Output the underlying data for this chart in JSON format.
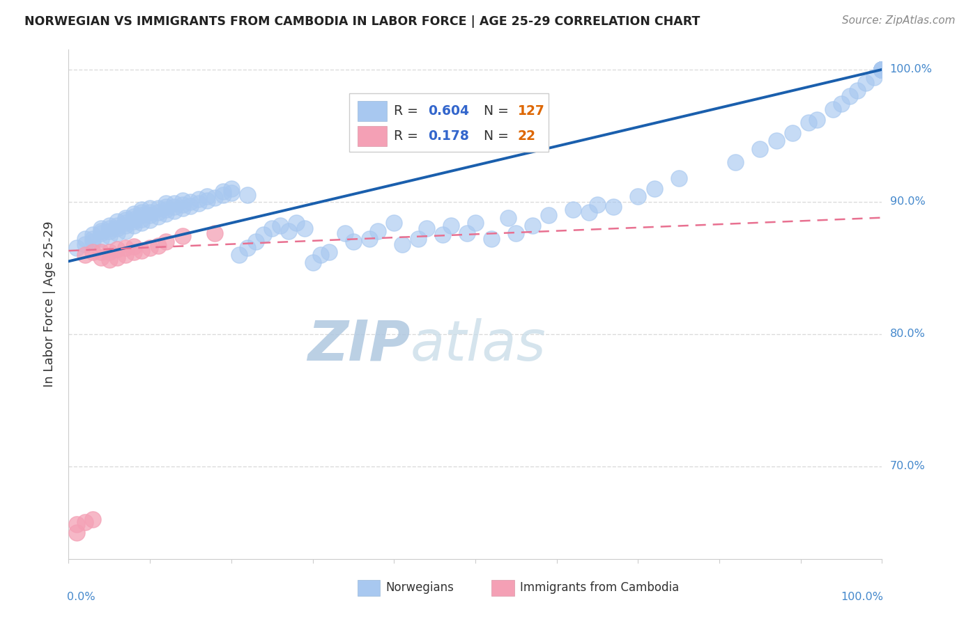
{
  "title": "NORWEGIAN VS IMMIGRANTS FROM CAMBODIA IN LABOR FORCE | AGE 25-29 CORRELATION CHART",
  "source": "Source: ZipAtlas.com",
  "ylabel": "In Labor Force | Age 25-29",
  "xlim": [
    0.0,
    1.0
  ],
  "ylim": [
    0.63,
    1.015
  ],
  "ytick_positions": [
    0.7,
    0.8,
    0.9,
    1.0
  ],
  "ytick_labels": [
    "70.0%",
    "80.0%",
    "90.0%",
    "100.0%"
  ],
  "norwegian_R": 0.604,
  "norwegian_N": 127,
  "cambodia_R": 0.178,
  "cambodia_N": 22,
  "blue_scatter_color": "#a8c8f0",
  "pink_scatter_color": "#f4a0b5",
  "blue_line_color": "#1a5fad",
  "pink_line_color": "#e83060",
  "pink_dashed_color": "#e87090",
  "grid_color": "#d8d8d8",
  "watermark_color": "#c5d8ee",
  "background_color": "#ffffff",
  "legend_R_color": "#3366cc",
  "legend_N_color": "#dd6600",
  "right_label_color": "#4488cc",
  "xtick_color": "#999999",
  "title_color": "#222222",
  "source_color": "#888888",
  "ylabel_color": "#333333",
  "legend_box_color": "#cccccc",
  "bottom_label_color": "#333333",
  "nor_x": [
    0.01,
    0.02,
    0.02,
    0.03,
    0.03,
    0.03,
    0.04,
    0.04,
    0.04,
    0.04,
    0.05,
    0.05,
    0.05,
    0.05,
    0.06,
    0.06,
    0.06,
    0.06,
    0.07,
    0.07,
    0.07,
    0.07,
    0.07,
    0.08,
    0.08,
    0.08,
    0.08,
    0.08,
    0.09,
    0.09,
    0.09,
    0.09,
    0.09,
    0.1,
    0.1,
    0.1,
    0.1,
    0.11,
    0.11,
    0.11,
    0.12,
    0.12,
    0.12,
    0.12,
    0.13,
    0.13,
    0.13,
    0.14,
    0.14,
    0.14,
    0.15,
    0.15,
    0.16,
    0.16,
    0.17,
    0.17,
    0.18,
    0.19,
    0.19,
    0.2,
    0.2,
    0.21,
    0.22,
    0.22,
    0.23,
    0.24,
    0.25,
    0.26,
    0.27,
    0.28,
    0.29,
    0.3,
    0.31,
    0.32,
    0.34,
    0.35,
    0.37,
    0.38,
    0.4,
    0.41,
    0.43,
    0.44,
    0.46,
    0.47,
    0.49,
    0.5,
    0.52,
    0.54,
    0.55,
    0.57,
    0.59,
    0.62,
    0.64,
    0.65,
    0.67,
    0.7,
    0.72,
    0.75,
    0.82,
    0.85,
    0.87,
    0.89,
    0.91,
    0.92,
    0.94,
    0.95,
    0.96,
    0.97,
    0.98,
    0.99,
    1.0,
    1.0,
    1.0,
    1.0,
    1.0,
    1.0,
    1.0,
    1.0,
    1.0,
    1.0,
    1.0,
    1.0,
    1.0,
    1.0,
    1.0,
    1.0,
    1.0
  ],
  "nor_y": [
    0.865,
    0.868,
    0.872,
    0.87,
    0.872,
    0.875,
    0.872,
    0.876,
    0.878,
    0.88,
    0.874,
    0.878,
    0.88,
    0.882,
    0.876,
    0.88,
    0.882,
    0.885,
    0.878,
    0.882,
    0.884,
    0.886,
    0.888,
    0.882,
    0.885,
    0.887,
    0.889,
    0.891,
    0.884,
    0.887,
    0.89,
    0.892,
    0.894,
    0.886,
    0.89,
    0.892,
    0.895,
    0.889,
    0.892,
    0.895,
    0.891,
    0.894,
    0.896,
    0.899,
    0.893,
    0.896,
    0.899,
    0.895,
    0.898,
    0.901,
    0.897,
    0.9,
    0.899,
    0.902,
    0.901,
    0.904,
    0.903,
    0.905,
    0.908,
    0.907,
    0.91,
    0.86,
    0.905,
    0.865,
    0.87,
    0.875,
    0.88,
    0.882,
    0.878,
    0.884,
    0.88,
    0.854,
    0.86,
    0.862,
    0.876,
    0.87,
    0.872,
    0.878,
    0.884,
    0.868,
    0.872,
    0.88,
    0.875,
    0.882,
    0.876,
    0.884,
    0.872,
    0.888,
    0.876,
    0.882,
    0.89,
    0.894,
    0.892,
    0.898,
    0.896,
    0.904,
    0.91,
    0.918,
    0.93,
    0.94,
    0.946,
    0.952,
    0.96,
    0.962,
    0.97,
    0.974,
    0.98,
    0.984,
    0.99,
    0.994,
    1.0,
    1.0,
    1.0,
    1.0,
    1.0,
    1.0,
    1.0,
    1.0,
    1.0,
    1.0,
    1.0,
    1.0,
    1.0,
    1.0,
    1.0,
    1.0,
    1.0
  ],
  "cam_x": [
    0.01,
    0.01,
    0.02,
    0.02,
    0.03,
    0.03,
    0.04,
    0.04,
    0.05,
    0.05,
    0.06,
    0.06,
    0.07,
    0.07,
    0.08,
    0.08,
    0.09,
    0.1,
    0.11,
    0.12,
    0.14,
    0.18
  ],
  "cam_y": [
    0.65,
    0.656,
    0.658,
    0.86,
    0.66,
    0.862,
    0.858,
    0.862,
    0.856,
    0.862,
    0.858,
    0.864,
    0.86,
    0.865,
    0.862,
    0.866,
    0.863,
    0.865,
    0.867,
    0.87,
    0.874,
    0.876
  ]
}
